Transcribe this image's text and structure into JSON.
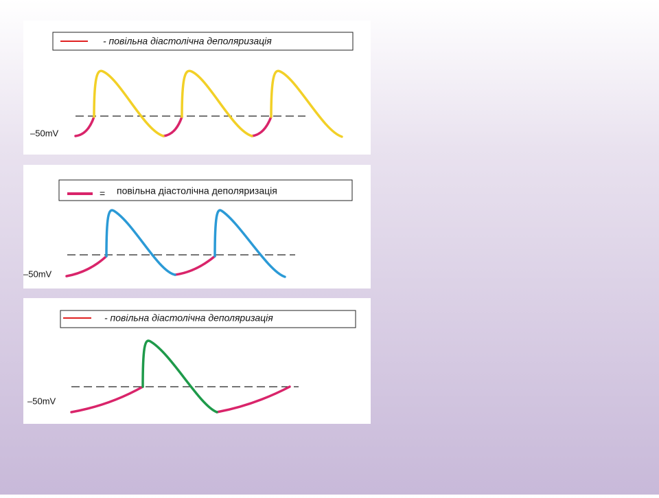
{
  "panels": [
    {
      "legend": "- повільна діастолічна деполяризація",
      "level_label": "–50mV"
    },
    {
      "legend_symbol": "=",
      "legend": "повільна діастолічна деполяризація",
      "level_label": "–50mV"
    },
    {
      "legend": "- повільна діастолічна деполяризація",
      "level_label": "–50mV"
    }
  ]
}
